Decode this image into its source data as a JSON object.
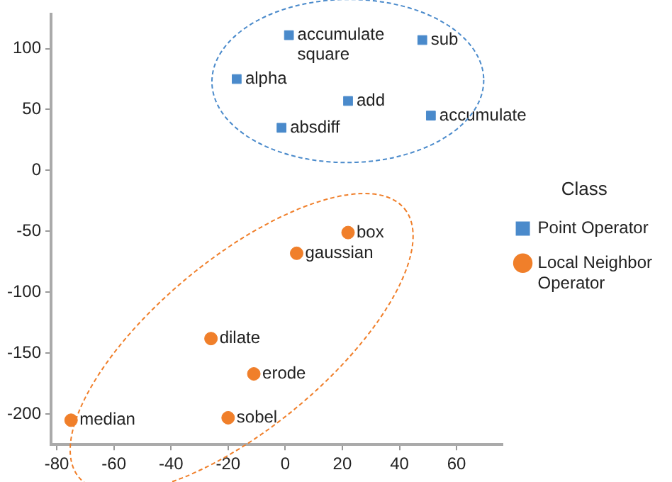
{
  "chart_data": {
    "type": "scatter",
    "legend_title": "Class",
    "legend": "right",
    "grid": false,
    "xlim": [
      -82,
      76
    ],
    "xticks": [
      -80,
      -60,
      -40,
      -20,
      0,
      20,
      40,
      60
    ],
    "ylim": [
      -225,
      128
    ],
    "yticks": [
      -200,
      -150,
      -100,
      -50,
      0,
      50,
      100
    ],
    "series": [
      {
        "name": "Point Operator",
        "color": "#4a8acb",
        "marker": "square",
        "x": [
          1.3,
          48,
          -17,
          22,
          51,
          -1.3
        ],
        "values": [
          111,
          107,
          75,
          57,
          45,
          35
        ]
      },
      {
        "name": "Local Neighbor Operator",
        "color": "#f07f2a",
        "marker": "circle",
        "x": [
          22,
          4,
          -26,
          -11,
          -20,
          -75
        ],
        "values": [
          -51,
          -68,
          -138,
          -167,
          -203,
          -205
        ]
      }
    ],
    "annotations": [
      {
        "text": "accumulate square",
        "x": 1.3,
        "y": 111
      },
      {
        "text": "sub",
        "x": 48,
        "y": 107
      },
      {
        "text": "alpha",
        "x": -17,
        "y": 75
      },
      {
        "text": "add",
        "x": 22,
        "y": 57
      },
      {
        "text": "accumulate",
        "x": 51,
        "y": 45
      },
      {
        "text": "absdiff",
        "x": -1.3,
        "y": 35
      },
      {
        "text": "box",
        "x": 22,
        "y": -51
      },
      {
        "text": "gaussian",
        "x": 4,
        "y": -68
      },
      {
        "text": "dilate",
        "x": -26,
        "y": -138
      },
      {
        "text": "erode",
        "x": -11,
        "y": -167
      },
      {
        "text": "sobel",
        "x": -20,
        "y": -203
      },
      {
        "text": "median",
        "x": -75,
        "y": -205
      }
    ]
  }
}
